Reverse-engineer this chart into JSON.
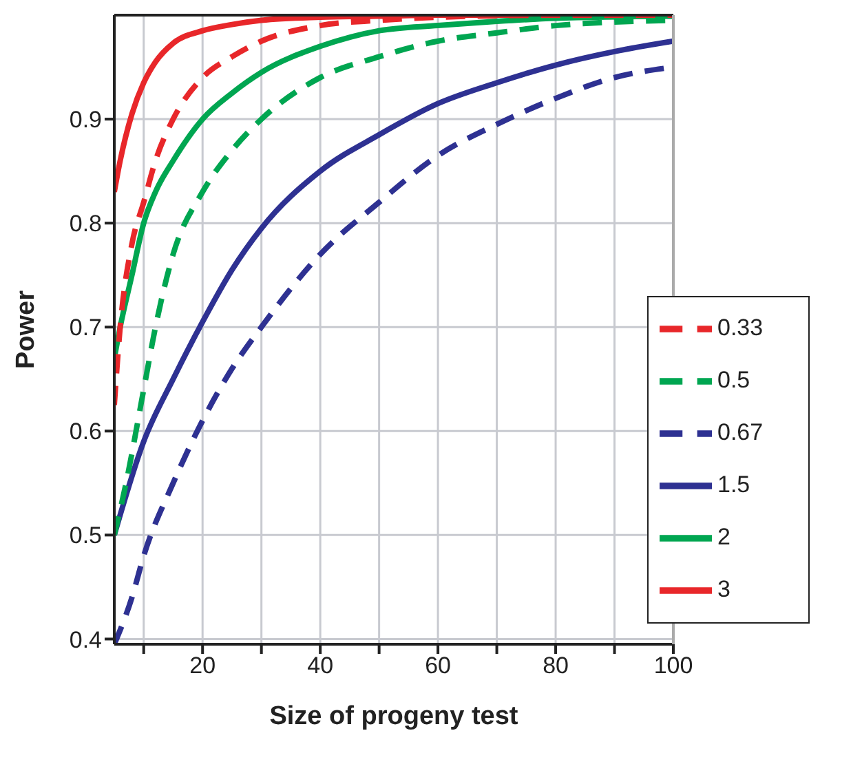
{
  "chart_data": {
    "type": "line",
    "xlabel": "Size of progeny test",
    "ylabel": "Power",
    "xlim": [
      5,
      100
    ],
    "xticks": [
      {
        "value": 10,
        "label": null
      },
      20,
      {
        "value": 30,
        "label": null
      },
      40,
      {
        "value": 50,
        "label": null
      },
      60,
      {
        "value": 70,
        "label": null
      },
      80,
      {
        "value": 90,
        "label": null
      },
      100
    ],
    "ylim": [
      0.395,
      1
    ],
    "yticks": [
      0.4,
      0.5,
      0.6,
      0.7,
      0.8,
      0.9
    ],
    "grid": true,
    "legend": "bottom right",
    "marker": "none",
    "series": [
      {
        "name": "3",
        "color": "#e8272a",
        "line_style": "solid",
        "x": [
          5,
          6,
          8,
          10,
          12,
          15,
          20,
          25,
          30,
          40,
          50,
          60,
          80,
          100
        ],
        "values": [
          0.83,
          0.86,
          0.905,
          0.935,
          0.955,
          0.973,
          0.985,
          0.991,
          0.995,
          0.998,
          0.999,
          1,
          1,
          1
        ]
      },
      {
        "name": "2",
        "color": "#00a651",
        "line_style": "solid",
        "x": [
          5,
          6,
          8,
          10,
          12,
          15,
          20,
          25,
          30,
          40,
          50,
          60,
          70,
          80,
          100
        ],
        "values": [
          0.67,
          0.7,
          0.75,
          0.8,
          0.83,
          0.86,
          0.9,
          0.925,
          0.945,
          0.97,
          0.985,
          0.99,
          0.994,
          0.997,
          0.999
        ]
      },
      {
        "name": "1.5",
        "color": "#2e3192",
        "line_style": "solid",
        "x": [
          5,
          10,
          15,
          20,
          25,
          30,
          40,
          50,
          60,
          70,
          80,
          90,
          100
        ],
        "values": [
          0.5,
          0.59,
          0.65,
          0.705,
          0.755,
          0.795,
          0.85,
          0.885,
          0.915,
          0.935,
          0.952,
          0.965,
          0.975
        ]
      },
      {
        "name": "0.33",
        "color": "#e8272a",
        "line_style": "dashed",
        "x": [
          5,
          6,
          8,
          10,
          12,
          15,
          20,
          25,
          30,
          40,
          50,
          60,
          80,
          100
        ],
        "values": [
          0.625,
          0.7,
          0.78,
          0.82,
          0.86,
          0.9,
          0.94,
          0.96,
          0.975,
          0.99,
          0.995,
          0.998,
          1,
          1
        ]
      },
      {
        "name": "0.5",
        "color": "#00a651",
        "line_style": "dashed",
        "x": [
          5,
          7,
          10,
          12,
          15,
          20,
          25,
          30,
          40,
          50,
          60,
          70,
          80,
          100
        ],
        "values": [
          0.5,
          0.55,
          0.64,
          0.7,
          0.77,
          0.83,
          0.87,
          0.9,
          0.94,
          0.96,
          0.975,
          0.983,
          0.99,
          0.995
        ]
      },
      {
        "name": "0.67",
        "color": "#2e3192",
        "line_style": "dashed",
        "x": [
          5,
          8,
          10,
          15,
          20,
          25,
          30,
          40,
          50,
          60,
          70,
          80,
          90,
          100
        ],
        "values": [
          0.395,
          0.44,
          0.48,
          0.55,
          0.61,
          0.66,
          0.7,
          0.77,
          0.82,
          0.865,
          0.895,
          0.92,
          0.94,
          0.95
        ]
      }
    ]
  }
}
